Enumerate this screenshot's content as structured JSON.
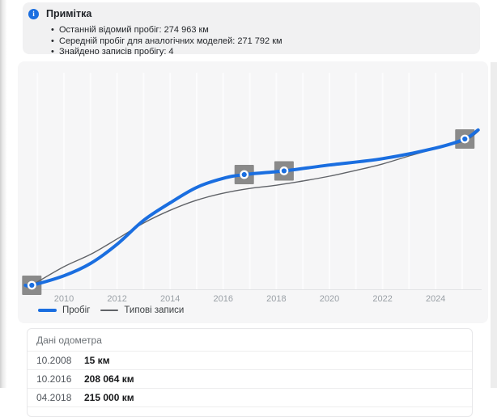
{
  "note": {
    "title": "Примітка",
    "bullets": [
      "Останній відомий пробіг: 274 963 км",
      "Середній пробіг для аналогічних моделей: 271 792 км",
      "Знайдено записів пробігу: 4"
    ]
  },
  "chart_data": {
    "type": "line",
    "title": "",
    "xlabel": "",
    "ylabel": "",
    "x_ticks": [
      2010,
      2012,
      2014,
      2016,
      2018,
      2020,
      2022,
      2024
    ],
    "x_gridline_years": [
      2009,
      2025
    ],
    "x_range": [
      2008.4,
      2025.9
    ],
    "y_range_km": [
      0,
      400000
    ],
    "grid": "vertical-only",
    "legend_position": "bottom-left",
    "series": [
      {
        "name": "Пробіг",
        "color": "#1a6ee0",
        "width": 4,
        "points": [
          [
            2008.55,
            15
          ],
          [
            2008.79,
            15
          ],
          [
            2010,
            18000
          ],
          [
            2011,
            41000
          ],
          [
            2012,
            77000
          ],
          [
            2013,
            122000
          ],
          [
            2014,
            155000
          ],
          [
            2015,
            184000
          ],
          [
            2016,
            201000
          ],
          [
            2016.79,
            208064
          ],
          [
            2018.29,
            215000
          ],
          [
            2020,
            226000
          ],
          [
            2022,
            238000
          ],
          [
            2024,
            258000
          ],
          [
            2025.1,
            274963
          ],
          [
            2025.6,
            292000
          ]
        ]
      },
      {
        "name": "Типові записи",
        "color": "#606368",
        "width": 1.4,
        "points": [
          [
            2008.79,
            15
          ],
          [
            2010,
            35000
          ],
          [
            2011,
            58000
          ],
          [
            2012,
            87000
          ],
          [
            2013,
            117000
          ],
          [
            2014,
            141000
          ],
          [
            2015,
            160000
          ],
          [
            2016,
            173000
          ],
          [
            2017,
            182000
          ],
          [
            2018,
            188000
          ],
          [
            2019,
            196000
          ],
          [
            2020,
            205000
          ],
          [
            2021,
            216000
          ],
          [
            2022,
            228000
          ],
          [
            2023,
            243000
          ],
          [
            2024,
            257000
          ],
          [
            2025.1,
            271792
          ],
          [
            2025.6,
            289000
          ]
        ]
      }
    ],
    "markers": [
      {
        "date": "10.2008",
        "x": 2008.79,
        "km": 15
      },
      {
        "date": "10.2016",
        "x": 2016.79,
        "km": 208064
      },
      {
        "date": "04.2018",
        "x": 2018.29,
        "km": 215000
      },
      {
        "date": "",
        "x": 2025.1,
        "km": 274963
      }
    ],
    "marker_square_color": "#8a8a8a",
    "axis_tick_color": "#9aa0a6"
  },
  "odometer_table": {
    "title": "Дані одометра",
    "rows": [
      {
        "date": "10.2008",
        "value": "15 км"
      },
      {
        "date": "10.2016",
        "value": "208 064 км"
      },
      {
        "date": "04.2018",
        "value": "215 000 км"
      }
    ]
  },
  "colors": {
    "accent_blue": "#1a6ee0",
    "note_bg": "#f1f1f2",
    "chart_bg": "#f6f6f7",
    "marker_gray": "#8a8a8a"
  }
}
